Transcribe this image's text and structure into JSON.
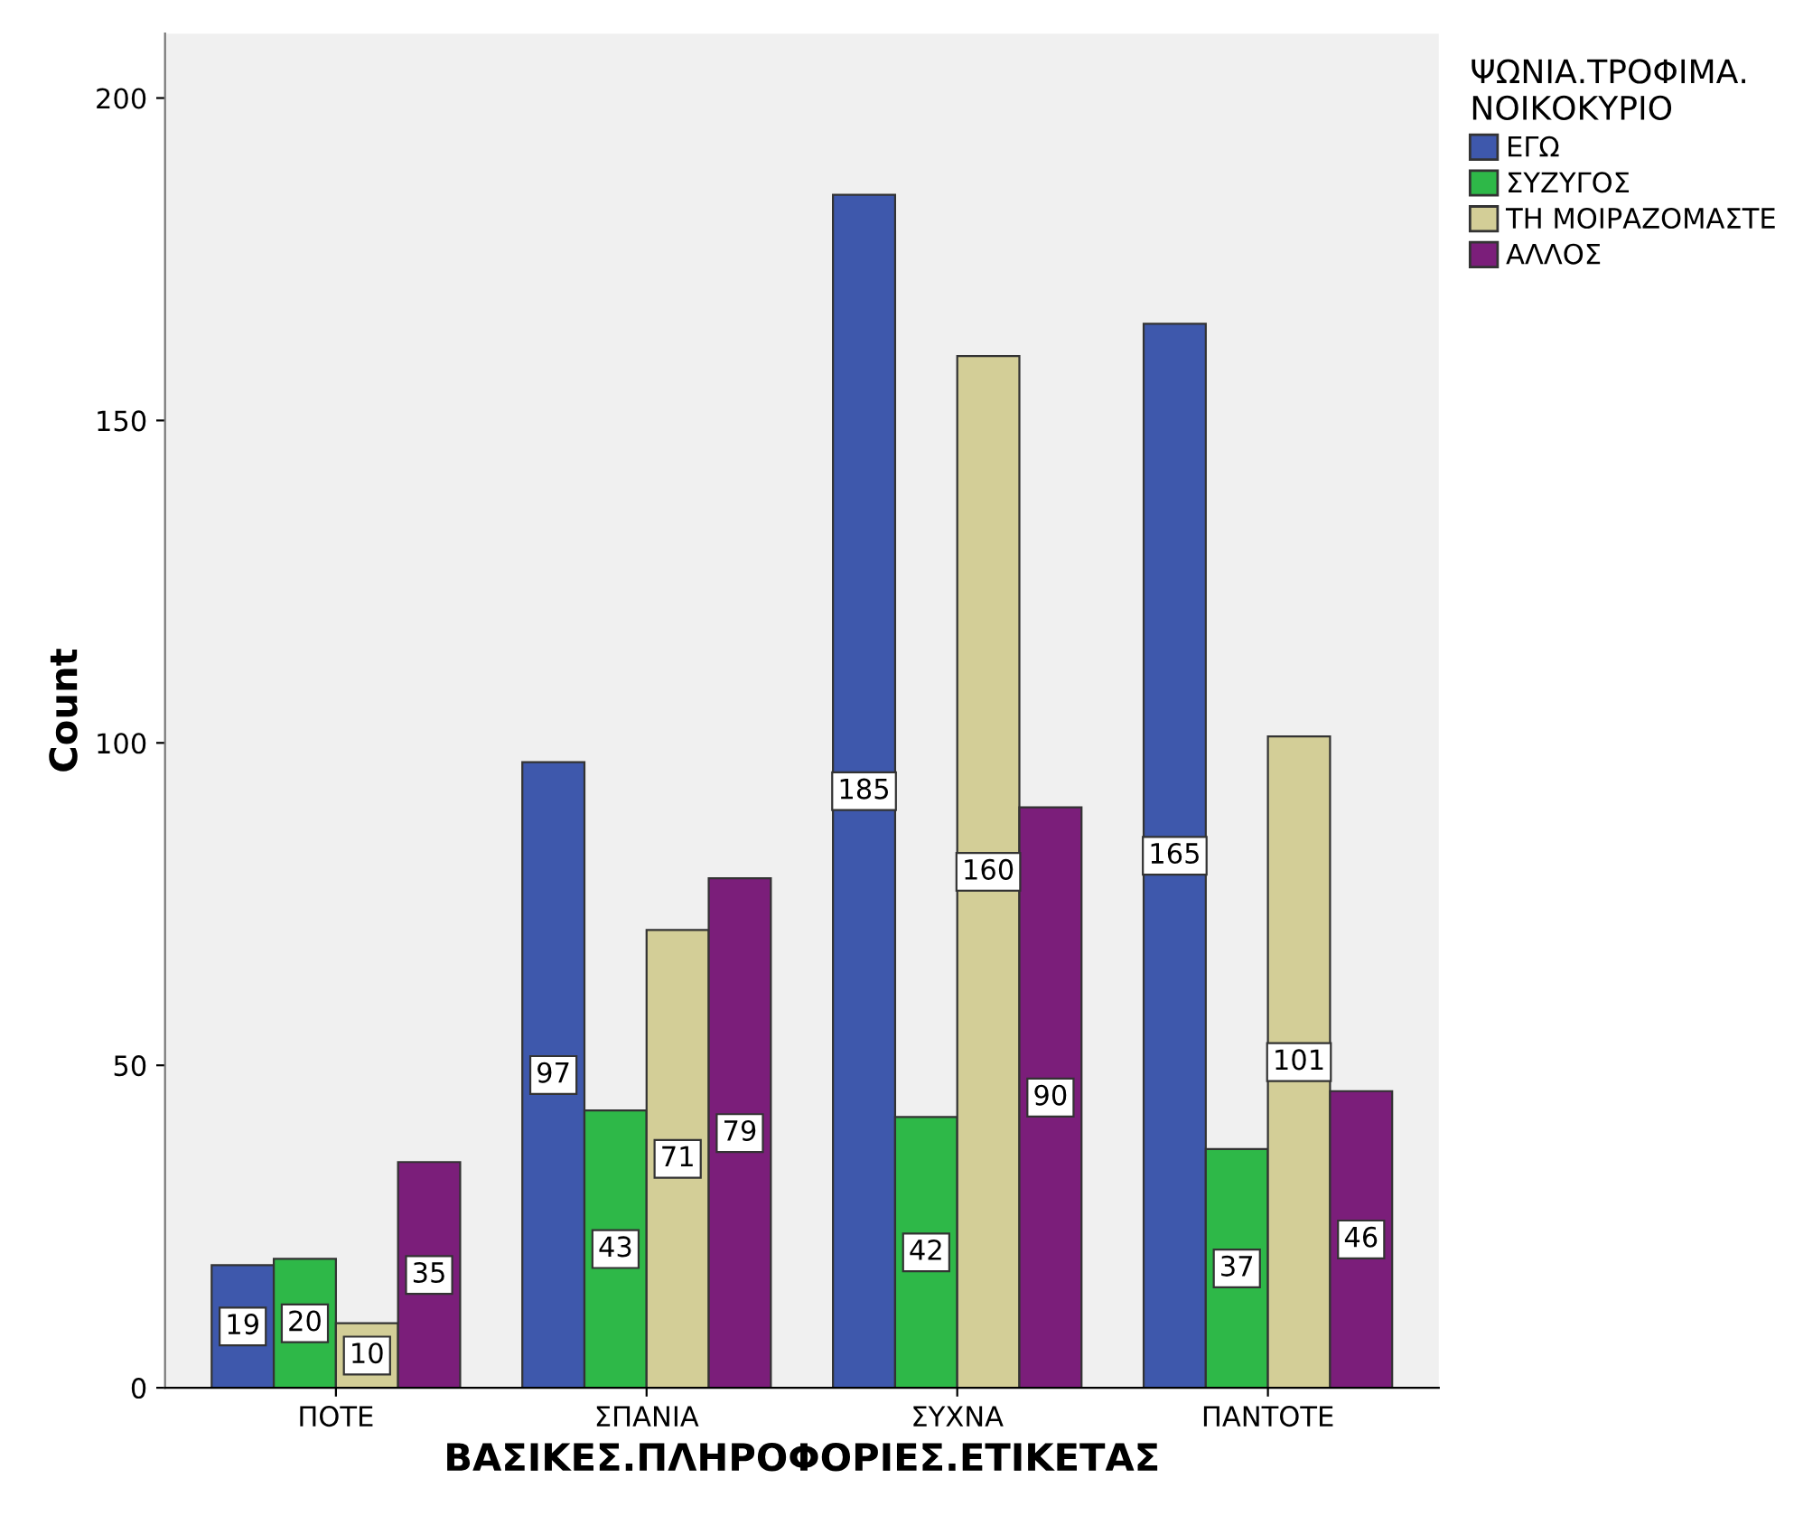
{
  "chart_data": {
    "type": "bar",
    "xlabel": "ΒΑΣΙΚΕΣ.ΠΛΗΡΟΦΟΡΙΕΣ.ΕΤΙΚΕΤΑΣ",
    "ylabel": "Count",
    "legend_title": "ΨΩΝΙΑ.ΤΡΟΦΙΜΑ.\nΝΟΙΚΟΚΥΡΙΟ",
    "categories": [
      "ΠΟΤΕ",
      "ΣΠΑΝΙΑ",
      "ΣΥΧΝΑ",
      "ΠΑΝΤΟΤΕ"
    ],
    "series": [
      {
        "name": "ΕΓΩ",
        "color": "#3e58ac",
        "values": [
          19,
          97,
          185,
          165
        ]
      },
      {
        "name": "ΣΥΖΥΓΟΣ",
        "color": "#2eb848",
        "values": [
          20,
          43,
          42,
          37
        ]
      },
      {
        "name": "ΤΗ ΜΟΙΡΑΖΟΜΑΣΤΕ",
        "color": "#d3ce97",
        "values": [
          10,
          71,
          160,
          101
        ]
      },
      {
        "name": "ΑΛΛΟΣ",
        "color": "#7b1e7a",
        "values": [
          35,
          79,
          90,
          46
        ]
      }
    ],
    "ylim": [
      0,
      210
    ],
    "yticks": [
      0,
      50,
      100,
      150,
      200
    ],
    "grid": false,
    "legend": "top right",
    "data_labels": true
  }
}
